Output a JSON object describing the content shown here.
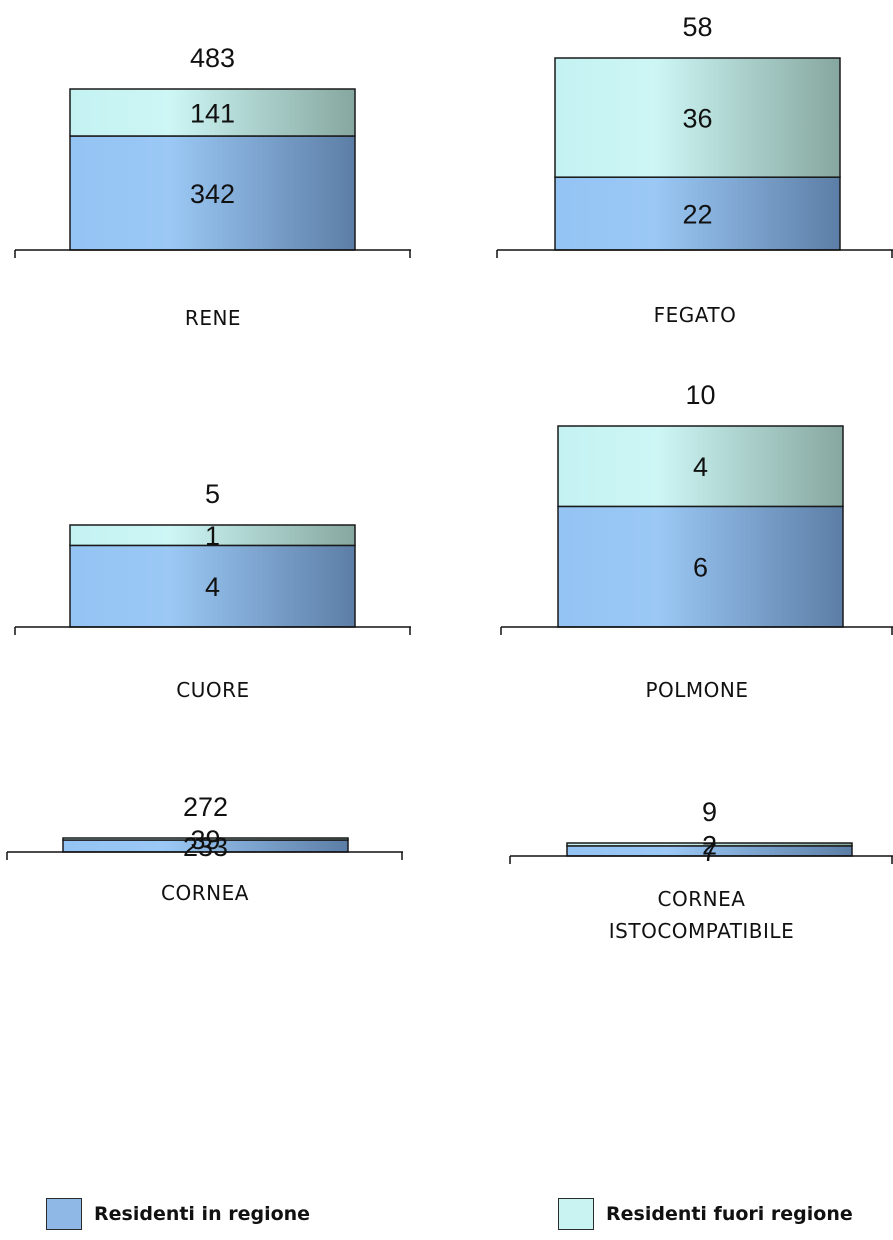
{
  "colors": {
    "residenti_in_regione": "#8fb8e6",
    "residenti_fuori_regione": "#c8f3f2",
    "border": "#1a1a1a",
    "text": "#111111"
  },
  "legend": {
    "in_regione": "Residenti in regione",
    "fuori_regione": "Residenti fuori regione"
  },
  "chart_data": [
    {
      "type": "bar",
      "categories": [
        "RENE"
      ],
      "total_label": "483",
      "series": [
        {
          "name": "Residenti in regione",
          "values": [
            342
          ]
        },
        {
          "name": "Residenti fuori regione",
          "values": [
            141
          ]
        }
      ]
    },
    {
      "type": "bar",
      "categories": [
        "FEGATO"
      ],
      "total_label": "58",
      "series": [
        {
          "name": "Residenti in regione",
          "values": [
            22
          ]
        },
        {
          "name": "Residenti fuori regione",
          "values": [
            36
          ]
        }
      ]
    },
    {
      "type": "bar",
      "categories": [
        "CUORE"
      ],
      "total_label": "5",
      "series": [
        {
          "name": "Residenti in regione",
          "values": [
            4
          ]
        },
        {
          "name": "Residenti fuori regione",
          "values": [
            1
          ]
        }
      ]
    },
    {
      "type": "bar",
      "categories": [
        "POLMONE"
      ],
      "total_label": "10",
      "series": [
        {
          "name": "Residenti in regione",
          "values": [
            6
          ]
        },
        {
          "name": "Residenti fuori regione",
          "values": [
            4
          ]
        }
      ]
    },
    {
      "type": "bar",
      "categories": [
        "CORNEA"
      ],
      "total_label": "272",
      "series": [
        {
          "name": "Residenti in regione",
          "values": [
            233
          ]
        },
        {
          "name": "Residenti fuori regione",
          "values": [
            39
          ]
        }
      ]
    },
    {
      "type": "bar",
      "categories": [
        "CORNEA\nISTOCOMPATIBILE"
      ],
      "total_label": "9",
      "series": [
        {
          "name": "Residenti in regione",
          "values": [
            7
          ]
        },
        {
          "name": "Residenti fuori regione",
          "values": [
            2
          ]
        }
      ]
    }
  ]
}
